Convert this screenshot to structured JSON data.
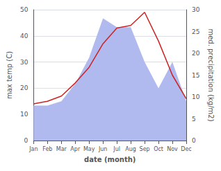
{
  "chart_data": {
    "type": "line",
    "xlabel": "date (month)",
    "ylabel": "max temp (C)",
    "y2label": "med. precipitation (kg/m2)",
    "categories": [
      "Jan",
      "Feb",
      "Mar",
      "Apr",
      "May",
      "Jun",
      "Jul",
      "Aug",
      "Sep",
      "Oct",
      "Nov",
      "Dec"
    ],
    "series": [
      {
        "type": "area",
        "color": "#b0baee",
        "axis": "y2",
        "values": [
          8,
          8,
          9,
          13,
          19,
          28,
          26,
          26,
          18,
          12,
          18,
          9
        ]
      },
      {
        "type": "line",
        "color": "#cc2222",
        "values": [
          14,
          15,
          17,
          22,
          28,
          37,
          43,
          44,
          49,
          38,
          25,
          16
        ]
      }
    ],
    "ylim": [
      0,
      50
    ],
    "yticks": [
      0,
      10,
      20,
      30,
      40,
      50
    ],
    "y2lim": [
      0,
      30
    ],
    "y2ticks": [
      0,
      5,
      10,
      15,
      20,
      25,
      30
    ],
    "grid": true
  }
}
